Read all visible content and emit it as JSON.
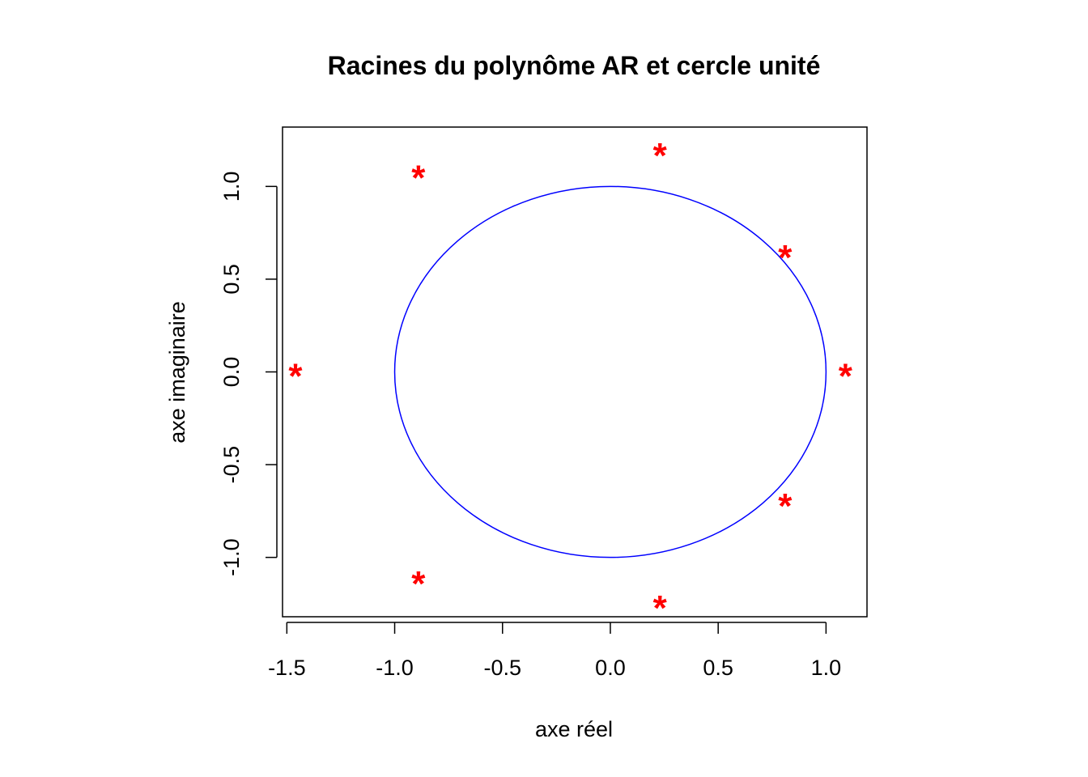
{
  "chart_data": {
    "type": "scatter",
    "title": "Racines du polynôme AR et cercle unité",
    "xlabel": "axe réel",
    "ylabel": "axe imaginaire",
    "xlim": [
      -1.52,
      1.19
    ],
    "ylim": [
      -1.32,
      1.32
    ],
    "x_ticks": [
      -1.5,
      -1.0,
      -0.5,
      0.0,
      0.5,
      1.0
    ],
    "x_tick_labels": [
      "-1.5",
      "-1.0",
      "-0.5",
      "0.0",
      "0.5",
      "1.0"
    ],
    "y_ticks": [
      -1.0,
      -0.5,
      0.0,
      0.5,
      1.0
    ],
    "y_tick_labels": [
      "-1.0",
      "-0.5",
      "0.0",
      "0.5",
      "1.0"
    ],
    "grid": false,
    "legend": "none",
    "marker_glyph": "*",
    "points": {
      "x": [
        -1.46,
        -0.89,
        -0.89,
        0.23,
        0.23,
        0.81,
        0.81,
        1.09
      ],
      "y": [
        0.0,
        1.07,
        -1.12,
        1.19,
        -1.25,
        0.64,
        -0.7,
        0.0
      ]
    },
    "unit_circle": {
      "center": [
        0,
        0
      ],
      "radius": 1
    },
    "colors": {
      "points": "#ff0000",
      "circle": "#0000ff",
      "axes": "#000000"
    }
  }
}
